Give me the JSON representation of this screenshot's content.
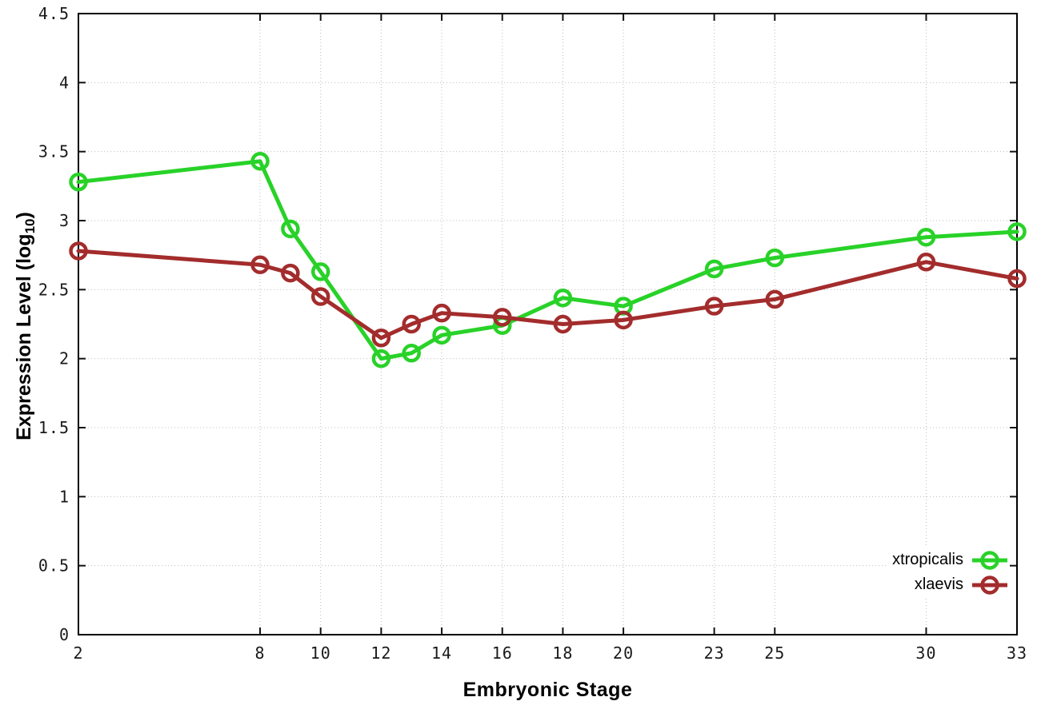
{
  "chart_data": {
    "type": "line",
    "title": "",
    "xlabel": "Embryonic Stage",
    "ylabel": "Expression Level (log10)",
    "ylabel_parts": {
      "prefix": "Expression Level (log",
      "sub": "10",
      "suffix": ")"
    },
    "xlim": [
      2,
      33
    ],
    "ylim": [
      0,
      4.5
    ],
    "xticks": [
      2,
      8,
      10,
      12,
      14,
      16,
      18,
      20,
      23,
      25,
      30,
      33
    ],
    "yticks": [
      0,
      0.5,
      1,
      1.5,
      2,
      2.5,
      3,
      3.5,
      4,
      4.5
    ],
    "ytick_labels": [
      "0",
      "0.5",
      "1",
      "1.5",
      "2",
      "2.5",
      "3",
      "3.5",
      "4",
      "4.5"
    ],
    "grid": "dotted",
    "legend_position": "bottom-right-inside",
    "axis_color": "#111111",
    "grid_color": "#bdbdbd",
    "x": [
      2,
      8,
      9,
      10,
      12,
      13,
      14,
      16,
      18,
      20,
      23,
      25,
      30,
      33
    ],
    "series": [
      {
        "name": "xtropicalis",
        "color": "#28d228",
        "marker": "open-circle",
        "values": [
          3.28,
          3.43,
          2.94,
          2.63,
          2.0,
          2.04,
          2.17,
          2.24,
          2.44,
          2.38,
          2.65,
          2.73,
          2.88,
          2.92
        ]
      },
      {
        "name": "xlaevis",
        "color": "#a32c2c",
        "marker": "open-circle",
        "values": [
          2.78,
          2.68,
          2.62,
          2.45,
          2.15,
          2.25,
          2.33,
          2.3,
          2.25,
          2.28,
          2.38,
          2.43,
          2.7,
          2.58
        ]
      }
    ]
  }
}
